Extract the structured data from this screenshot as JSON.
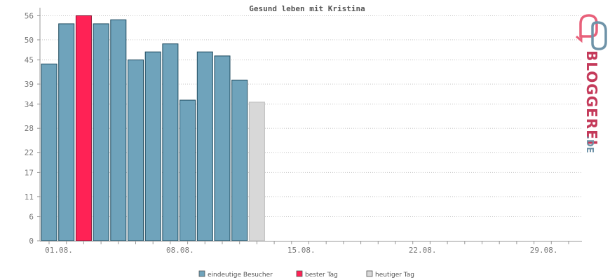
{
  "chart_data": {
    "type": "bar",
    "title": "Gesund leben mit Kristina",
    "days": [
      1,
      2,
      3,
      4,
      5,
      6,
      7,
      8,
      9,
      10,
      11,
      12,
      13,
      14,
      15,
      16,
      17,
      18,
      19,
      20,
      21,
      22,
      23,
      24,
      25,
      26,
      27,
      28,
      29,
      30,
      31
    ],
    "series": [
      {
        "name": "eindeutige Besucher",
        "values": [
          44,
          54,
          null,
          54,
          55,
          45,
          47,
          49,
          35,
          47,
          46,
          40,
          null,
          null,
          null,
          null,
          null,
          null,
          null,
          null,
          null,
          null,
          null,
          null,
          null,
          null,
          null,
          null,
          null,
          null,
          null
        ]
      },
      {
        "name": "bester Tag",
        "values": [
          null,
          null,
          56,
          null,
          null,
          null,
          null,
          null,
          null,
          null,
          null,
          null,
          null,
          null,
          null,
          null,
          null,
          null,
          null,
          null,
          null,
          null,
          null,
          null,
          null,
          null,
          null,
          null,
          null,
          null,
          null
        ]
      },
      {
        "name": "heutiger Tag",
        "values": [
          null,
          null,
          null,
          null,
          null,
          null,
          null,
          null,
          null,
          null,
          null,
          null,
          34.5,
          null,
          null,
          null,
          null,
          null,
          null,
          null,
          null,
          null,
          null,
          null,
          null,
          null,
          null,
          null,
          null,
          null,
          null
        ]
      }
    ],
    "x_tick_labels": [
      {
        "day": 1,
        "label": "01.08."
      },
      {
        "day": 8,
        "label": "08.08."
      },
      {
        "day": 15,
        "label": "15.08."
      },
      {
        "day": 22,
        "label": "22.08."
      },
      {
        "day": 29,
        "label": "29.08."
      }
    ],
    "y_ticks": [
      0,
      6,
      11,
      17,
      22,
      28,
      34,
      39,
      45,
      50,
      56
    ],
    "ylim": [
      0,
      58
    ],
    "grid": true,
    "legend_position": "bottom-center",
    "colors": {
      "eindeutige Besucher": "#6fa3bb",
      "bester Tag": "#ff2255",
      "heutiger Tag": "#d8d8d8"
    }
  },
  "logo": {
    "text_main": "BLOGGEREI",
    "text_suffix": ".DE"
  }
}
